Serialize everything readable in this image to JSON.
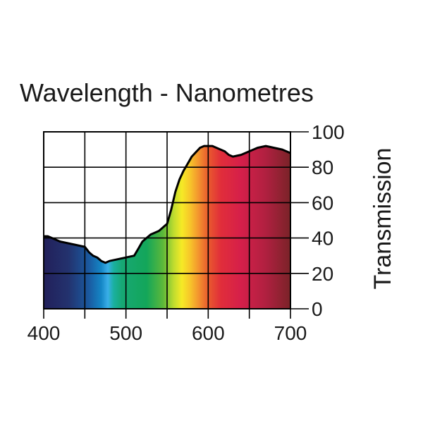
{
  "chart_data": {
    "type": "area",
    "title": "Wavelength - Nanometres",
    "xlabel": "Wavelength - Nanometres",
    "ylabel": "Transmission",
    "xlim": [
      400,
      700
    ],
    "ylim": [
      0,
      100
    ],
    "x_ticks": [
      400,
      500,
      600,
      700
    ],
    "y_ticks": [
      0,
      20,
      40,
      60,
      80,
      100
    ],
    "x_grid": [
      400,
      450,
      500,
      550,
      600,
      650,
      700
    ],
    "y_grid": [
      0,
      20,
      40,
      60,
      80,
      100
    ],
    "grid": true,
    "y_axis_side": "right",
    "fill": "visible-spectrum gradient",
    "series": [
      {
        "name": "Transmission",
        "x": [
          400,
          405,
          410,
          420,
          430,
          440,
          450,
          455,
          460,
          465,
          470,
          475,
          480,
          490,
          500,
          510,
          515,
          520,
          525,
          530,
          540,
          550,
          555,
          560,
          565,
          570,
          575,
          580,
          590,
          595,
          600,
          605,
          610,
          620,
          625,
          630,
          640,
          650,
          660,
          670,
          680,
          690,
          695,
          700
        ],
        "y": [
          41,
          41,
          40,
          38,
          37,
          36,
          35,
          32,
          30,
          29,
          27,
          26,
          27,
          28,
          29,
          30,
          34,
          38,
          40,
          42,
          44,
          48,
          56,
          66,
          73,
          78,
          82,
          86,
          91,
          92,
          92,
          92,
          91,
          89,
          87,
          86,
          87,
          89,
          91,
          92,
          91,
          90,
          89,
          88
        ]
      }
    ]
  },
  "colors": {
    "outline": "#000000",
    "grid": "#000000",
    "spectrum_stops": [
      {
        "nm": 400,
        "color": "#22205a"
      },
      {
        "nm": 430,
        "color": "#23326e"
      },
      {
        "nm": 455,
        "color": "#1a5aa0"
      },
      {
        "nm": 470,
        "color": "#1486c6"
      },
      {
        "nm": 478,
        "color": "#3aaee8"
      },
      {
        "nm": 485,
        "color": "#1ab0a0"
      },
      {
        "nm": 495,
        "color": "#17a874"
      },
      {
        "nm": 525,
        "color": "#13a65a"
      },
      {
        "nm": 545,
        "color": "#5cb83a"
      },
      {
        "nm": 558,
        "color": "#bfdc2f"
      },
      {
        "nm": 568,
        "color": "#f6ea26"
      },
      {
        "nm": 578,
        "color": "#f7c52a"
      },
      {
        "nm": 588,
        "color": "#f3952e"
      },
      {
        "nm": 600,
        "color": "#e95a2e"
      },
      {
        "nm": 615,
        "color": "#e12e3a"
      },
      {
        "nm": 640,
        "color": "#d51f4a"
      },
      {
        "nm": 670,
        "color": "#b02040"
      },
      {
        "nm": 700,
        "color": "#7a2328"
      }
    ]
  }
}
